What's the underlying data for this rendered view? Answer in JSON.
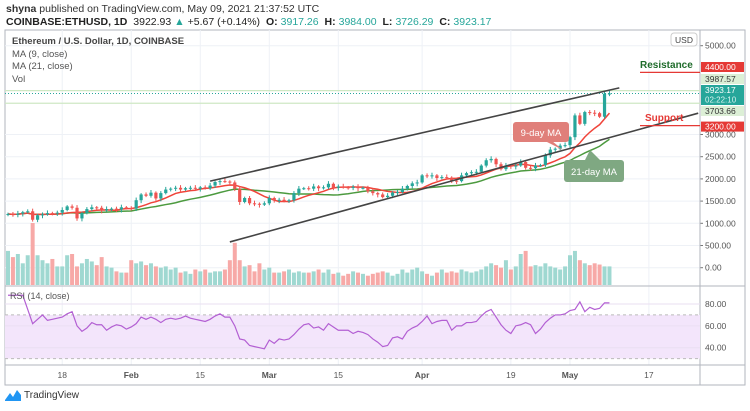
{
  "header": {
    "author": "shyna",
    "published_text": "published on TradingView.com, May 09, 2021 21:37:52 UTC",
    "symbol": "COINBASE:ETHUSD, 1D",
    "last": "3922.93",
    "change_arrow": "▲",
    "change": "+5.67 (+0.14%)",
    "o_label": "O:",
    "o": "3917.26",
    "h_label": "H:",
    "h": "3984.00",
    "l_label": "L:",
    "l": "3726.29",
    "c_label": "C:",
    "c": "3923.17"
  },
  "legend": {
    "title": "Ethereum / U.S. Dollar, 1D, COINBASE",
    "ma9": "MA (9, close)",
    "ma21": "MA (21, close)",
    "vol": "Vol",
    "rsi": "RSI (14, close)"
  },
  "currency_badge": "USD",
  "footer": {
    "brand": "TradingView"
  },
  "colors": {
    "up": "#26a69a",
    "down": "#ef5350",
    "ma9": "#f0443a",
    "ma21": "#4c9a3f",
    "rsi": "#b35fd3",
    "resistance": "#1e6b2a",
    "support": "#e53935"
  },
  "chart_data": {
    "type": "candlestick",
    "x_range": [
      "2021-01-07",
      "2021-05-09"
    ],
    "x_ticks": [
      "18",
      "Feb",
      "15",
      "Mar",
      "15",
      "Apr",
      "19",
      "May",
      "17"
    ],
    "y_ticks": [
      "5000.00",
      "3000.00",
      "2500.00",
      "2000.00",
      "1500.00",
      "1000.00",
      "500.00",
      "0.00"
    ],
    "ylim": [
      0,
      5000
    ],
    "closes": [
      1210,
      1190,
      1220,
      1250,
      1270,
      1080,
      1180,
      1200,
      1230,
      1220,
      1240,
      1300,
      1380,
      1350,
      1110,
      1230,
      1320,
      1360,
      1350,
      1290,
      1320,
      1330,
      1310,
      1360,
      1340,
      1330,
      1520,
      1650,
      1620,
      1690,
      1560,
      1680,
      1760,
      1780,
      1800,
      1760,
      1790,
      1800,
      1780,
      1810,
      1790,
      1850,
      1930,
      1950,
      1940,
      1920,
      1780,
      1480,
      1570,
      1450,
      1440,
      1420,
      1450,
      1570,
      1520,
      1530,
      1500,
      1520,
      1680,
      1780,
      1790,
      1780,
      1830,
      1790,
      1810,
      1890,
      1800,
      1830,
      1810,
      1800,
      1820,
      1790,
      1800,
      1720,
      1680,
      1650,
      1590,
      1620,
      1690,
      1705,
      1780,
      1840,
      1900,
      1920,
      2080,
      2060,
      2080,
      2020,
      2040,
      2030,
      1960,
      1950,
      2080,
      2130,
      2150,
      2160,
      2300,
      2420,
      2450,
      2330,
      2220,
      2300,
      2280,
      2300,
      2380,
      2250,
      2240,
      2300,
      2310,
      2530,
      2660,
      2680,
      2750,
      2760,
      2940,
      3430,
      3240,
      3505,
      3490,
      3480,
      3400,
      3918,
      3923.17
    ],
    "volume_relative": [
      55,
      45,
      50,
      35,
      48,
      100,
      48,
      40,
      35,
      42,
      30,
      30,
      48,
      50,
      30,
      35,
      42,
      38,
      32,
      45,
      30,
      28,
      22,
      20,
      20,
      40,
      35,
      38,
      32,
      35,
      30,
      28,
      30,
      25,
      28,
      20,
      22,
      18,
      25,
      22,
      25,
      20,
      22,
      22,
      25,
      40,
      68,
      40,
      30,
      32,
      22,
      35,
      25,
      28,
      20,
      20,
      22,
      25,
      20,
      22,
      20,
      20,
      22,
      25,
      20,
      25,
      18,
      20,
      15,
      18,
      22,
      20,
      18,
      15,
      18,
      20,
      22,
      20,
      15,
      18,
      25,
      20,
      25,
      28,
      22,
      18,
      15,
      20,
      25,
      20,
      22,
      20,
      25,
      22,
      20,
      22,
      25,
      30,
      35,
      32,
      28,
      40,
      25,
      30,
      50,
      55,
      30,
      32,
      30,
      35,
      30,
      28,
      25,
      30,
      48,
      55,
      40,
      35,
      32,
      35,
      33,
      30,
      30
    ],
    "rsi": {
      "ylim": [
        20,
        95
      ],
      "bands": [
        30,
        70
      ],
      "y_ticks": [
        "80.00",
        "60.00",
        "40.00"
      ],
      "values": [
        88,
        88,
        88,
        88,
        75,
        62,
        66,
        70,
        65,
        66,
        67,
        68,
        71,
        73,
        60,
        55,
        58,
        63,
        61,
        61,
        56,
        59,
        61,
        60,
        57,
        59,
        62,
        68,
        66,
        68,
        66,
        63,
        66,
        67,
        66,
        67,
        69,
        67,
        66,
        65,
        64,
        66,
        69,
        71,
        68,
        68,
        60,
        48,
        47,
        42,
        41,
        40,
        39,
        47,
        44,
        48,
        47,
        48,
        52,
        57,
        61,
        62,
        58,
        59,
        56,
        62,
        59,
        56,
        56,
        56,
        53,
        55,
        54,
        52,
        48,
        45,
        41,
        42,
        49,
        50,
        48,
        55,
        58,
        60,
        64,
        69,
        62,
        64,
        65,
        65,
        56,
        60,
        60,
        63,
        63,
        64,
        69,
        73,
        75,
        68,
        61,
        56,
        53,
        60,
        61,
        63,
        61,
        53,
        57,
        63,
        67,
        70,
        70,
        71,
        74,
        75,
        82,
        73,
        77,
        75,
        76,
        81,
        81
      ]
    },
    "trendlines": [
      {
        "from": [
          "2021-02-17",
          1950
        ],
        "to": [
          "2021-05-11",
          4050
        ]
      },
      {
        "from": [
          "2021-02-21",
          580
        ],
        "to": [
          "2021-05-27",
          3480
        ]
      }
    ],
    "price_labels": [
      {
        "text": "4400.00",
        "kind": "resistance"
      },
      {
        "text": "3987.57",
        "kind": "high"
      },
      {
        "text": "3923.17",
        "sub": "02:22:10",
        "kind": "last"
      },
      {
        "text": "3703.66",
        "kind": "low"
      },
      {
        "text": "3200.00",
        "kind": "support"
      }
    ],
    "levels": {
      "resistance": 4400,
      "support": 3200,
      "high": 3987.57,
      "low": 3703.66,
      "last": 3923.17
    },
    "annotations": {
      "resistance": "Resistance",
      "support": "Support",
      "ma9": "9-day MA",
      "ma21": "21-day MA"
    }
  }
}
